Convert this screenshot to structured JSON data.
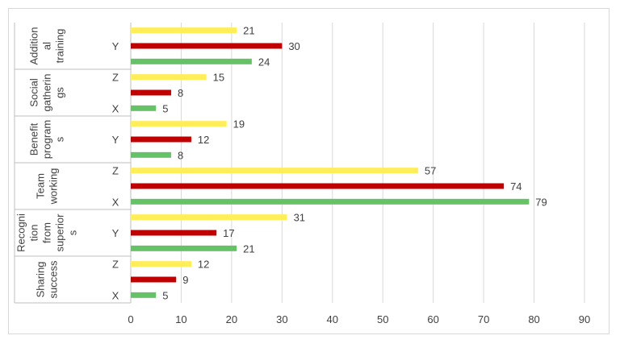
{
  "chart_data": {
    "type": "bar",
    "orientation": "horizontal",
    "xlim": [
      0,
      90
    ],
    "ticks": [
      0,
      10,
      20,
      30,
      40,
      50,
      60,
      70,
      80,
      90
    ],
    "grid": true,
    "legend": "none",
    "colors": {
      "X": "#66c266",
      "Y": "#c00000",
      "Z": "#ffee58"
    },
    "groups": [
      {
        "label": [
          "Addition",
          "al",
          "training"
        ],
        "bars": [
          {
            "series": "Z",
            "value": 21
          },
          {
            "series": "Y",
            "value": 30
          },
          {
            "series": "X",
            "value": 24
          }
        ],
        "cat_labels": [
          "",
          "Y",
          ""
        ]
      },
      {
        "label": [
          "Social",
          "gatherin",
          "gs"
        ],
        "bars": [
          {
            "series": "Z",
            "value": 15
          },
          {
            "series": "Y",
            "value": 8
          },
          {
            "series": "X",
            "value": 5
          }
        ],
        "cat_labels": [
          "Z",
          "",
          "X"
        ]
      },
      {
        "label": [
          "Benefit",
          "program",
          "s"
        ],
        "bars": [
          {
            "series": "Z",
            "value": 19
          },
          {
            "series": "Y",
            "value": 12
          },
          {
            "series": "X",
            "value": 8
          }
        ],
        "cat_labels": [
          "",
          "Y",
          ""
        ]
      },
      {
        "label": [
          "Team",
          "working"
        ],
        "bars": [
          {
            "series": "Z",
            "value": 57
          },
          {
            "series": "Y",
            "value": 74
          },
          {
            "series": "X",
            "value": 79
          }
        ],
        "cat_labels": [
          "Z",
          "",
          "X"
        ]
      },
      {
        "label": [
          "Recogni",
          "tion",
          "from",
          "superior",
          "s"
        ],
        "bars": [
          {
            "series": "Z",
            "value": 31
          },
          {
            "series": "Y",
            "value": 17
          },
          {
            "series": "X",
            "value": 21
          }
        ],
        "cat_labels": [
          "",
          "Y",
          ""
        ]
      },
      {
        "label": [
          "Sharing",
          "success"
        ],
        "bars": [
          {
            "series": "Z",
            "value": 12
          },
          {
            "series": "Y",
            "value": 9
          },
          {
            "series": "X",
            "value": 5
          }
        ],
        "cat_labels": [
          "Z",
          "",
          "X"
        ]
      }
    ]
  }
}
